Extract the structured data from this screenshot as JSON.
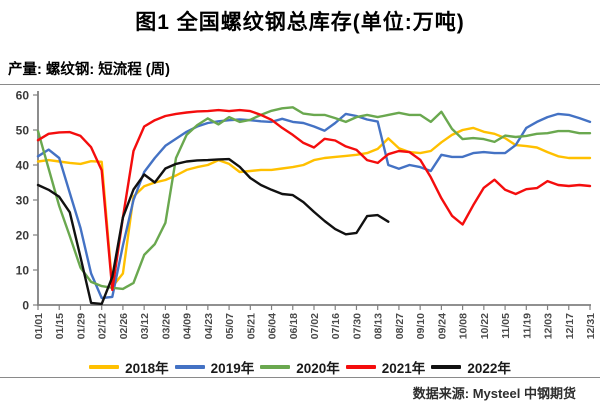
{
  "header": {
    "title": "图1 全国螺纹钢总库存(单位:万吨)",
    "subtitle": "产量: 螺纹钢: 短流程 (周)"
  },
  "footer": {
    "source": "数据来源: Mysteel 中钢期货"
  },
  "chart_data": {
    "type": "line",
    "title": "图1 全国螺纹钢总库存(单位:万吨)",
    "xlabel": "",
    "ylabel": "",
    "ylim": [
      0,
      60
    ],
    "yticks": [
      0,
      10,
      20,
      30,
      40,
      50,
      60
    ],
    "grid": false,
    "legend_position": "bottom",
    "x": [
      "01/01",
      "01/08",
      "01/15",
      "01/22",
      "01/29",
      "02/05",
      "02/12",
      "02/19",
      "02/26",
      "03/05",
      "03/12",
      "03/19",
      "03/26",
      "04/02",
      "04/09",
      "04/16",
      "04/23",
      "04/30",
      "05/07",
      "05/14",
      "05/21",
      "05/28",
      "06/04",
      "06/11",
      "06/18",
      "06/25",
      "07/02",
      "07/09",
      "07/16",
      "07/23",
      "07/30",
      "08/06",
      "08/13",
      "08/20",
      "08/27",
      "09/03",
      "09/10",
      "09/17",
      "09/24",
      "10/01",
      "10/08",
      "10/15",
      "10/22",
      "10/29",
      "11/05",
      "11/12",
      "11/19",
      "11/26",
      "12/03",
      "12/10",
      "12/17",
      "12/24",
      "12/31"
    ],
    "tick_labels": [
      "01/01",
      "01/15",
      "01/29",
      "02/12",
      "02/26",
      "03/12",
      "03/26",
      "04/09",
      "04/23",
      "05/07",
      "05/21",
      "06/04",
      "06/18",
      "07/02",
      "07/16",
      "07/30",
      "08/13",
      "08/27",
      "09/10",
      "09/24",
      "10/08",
      "10/22",
      "11/05",
      "11/19",
      "12/03",
      "12/17",
      "12/31"
    ],
    "series": [
      {
        "name": "2018年",
        "color": "#FFC000",
        "values": [
          41,
          41.4,
          41,
          40.6,
          40.3,
          41.1,
          40.9,
          5.2,
          9,
          31,
          33.9,
          35,
          35.7,
          37,
          38.6,
          39.4,
          40,
          41.4,
          40.3,
          38,
          38.3,
          38.6,
          38.6,
          39,
          39.4,
          40,
          41.4,
          42,
          42.3,
          42.6,
          42.9,
          43.4,
          44.6,
          47.6,
          44.8,
          43.7,
          43.4,
          44,
          46.5,
          48.6,
          50,
          50.6,
          49.5,
          48.9,
          47.7,
          45.7,
          45.4,
          45,
          43.7,
          42.5,
          42,
          42,
          42
        ]
      },
      {
        "name": "2019年",
        "color": "#4472C4",
        "values": [
          42.5,
          44.4,
          42,
          32,
          22,
          9,
          2,
          2.3,
          17,
          30,
          38,
          42,
          45.5,
          47.5,
          49.5,
          51,
          52,
          52.5,
          52.8,
          53,
          52.8,
          52.5,
          52.3,
          53.2,
          52.3,
          52,
          51,
          49.8,
          52,
          54.6,
          54,
          53,
          52.4,
          40,
          38.9,
          40,
          39.4,
          38.3,
          42.9,
          42.3,
          42.3,
          43.4,
          43.7,
          43.4,
          43.4,
          45.7,
          50.6,
          52.3,
          53.7,
          54.6,
          54.3,
          53.4,
          52.3
        ]
      },
      {
        "name": "2020年",
        "color": "#6AA84F",
        "values": [
          49.7,
          39,
          28.3,
          19.7,
          10.7,
          6.6,
          5.4,
          4.9,
          4.6,
          6.3,
          14.3,
          17.4,
          23.5,
          42,
          48.6,
          51.4,
          53.3,
          51.6,
          53.7,
          52.3,
          52.9,
          54.3,
          55.5,
          56.2,
          56.5,
          54.7,
          54.3,
          54.3,
          53.4,
          52.3,
          53.7,
          54.3,
          53.7,
          54.3,
          54.9,
          54.3,
          54.3,
          52.3,
          55.2,
          50.3,
          47.4,
          47.7,
          47.4,
          46.6,
          48.4,
          48,
          48.3,
          48.9,
          49.1,
          49.7,
          49.7,
          49.1,
          49.1
        ]
      },
      {
        "name": "2021年",
        "color": "#F40D0D",
        "values": [
          47.1,
          48.9,
          49.3,
          49.4,
          48.3,
          45.1,
          38.5,
          4.3,
          25,
          44,
          51,
          52.8,
          54,
          54.6,
          55,
          55.3,
          55.4,
          55.7,
          55.4,
          55.7,
          55.4,
          54.3,
          52.9,
          50.6,
          48.6,
          46.3,
          45,
          47.5,
          47,
          45.3,
          44.3,
          41.4,
          40.6,
          43.1,
          44,
          43.7,
          41.5,
          36.5,
          30.5,
          25.5,
          23,
          28.5,
          33.5,
          35.8,
          32.9,
          31.7,
          33.1,
          33.4,
          35.4,
          34.3,
          34,
          34.3,
          34
        ]
      },
      {
        "name": "2022年",
        "color": "#111111",
        "values": [
          34.3,
          32.9,
          30.9,
          26.5,
          13.7,
          0.6,
          0.3,
          8,
          25,
          33,
          37.3,
          35,
          39,
          40.3,
          41,
          41.3,
          41.4,
          41.6,
          41.7,
          39.5,
          36.3,
          34.3,
          32.9,
          31.7,
          31.4,
          29.4,
          26.6,
          24,
          21.7,
          20.2,
          20.6,
          25.4,
          25.7,
          23.8
        ]
      }
    ]
  }
}
